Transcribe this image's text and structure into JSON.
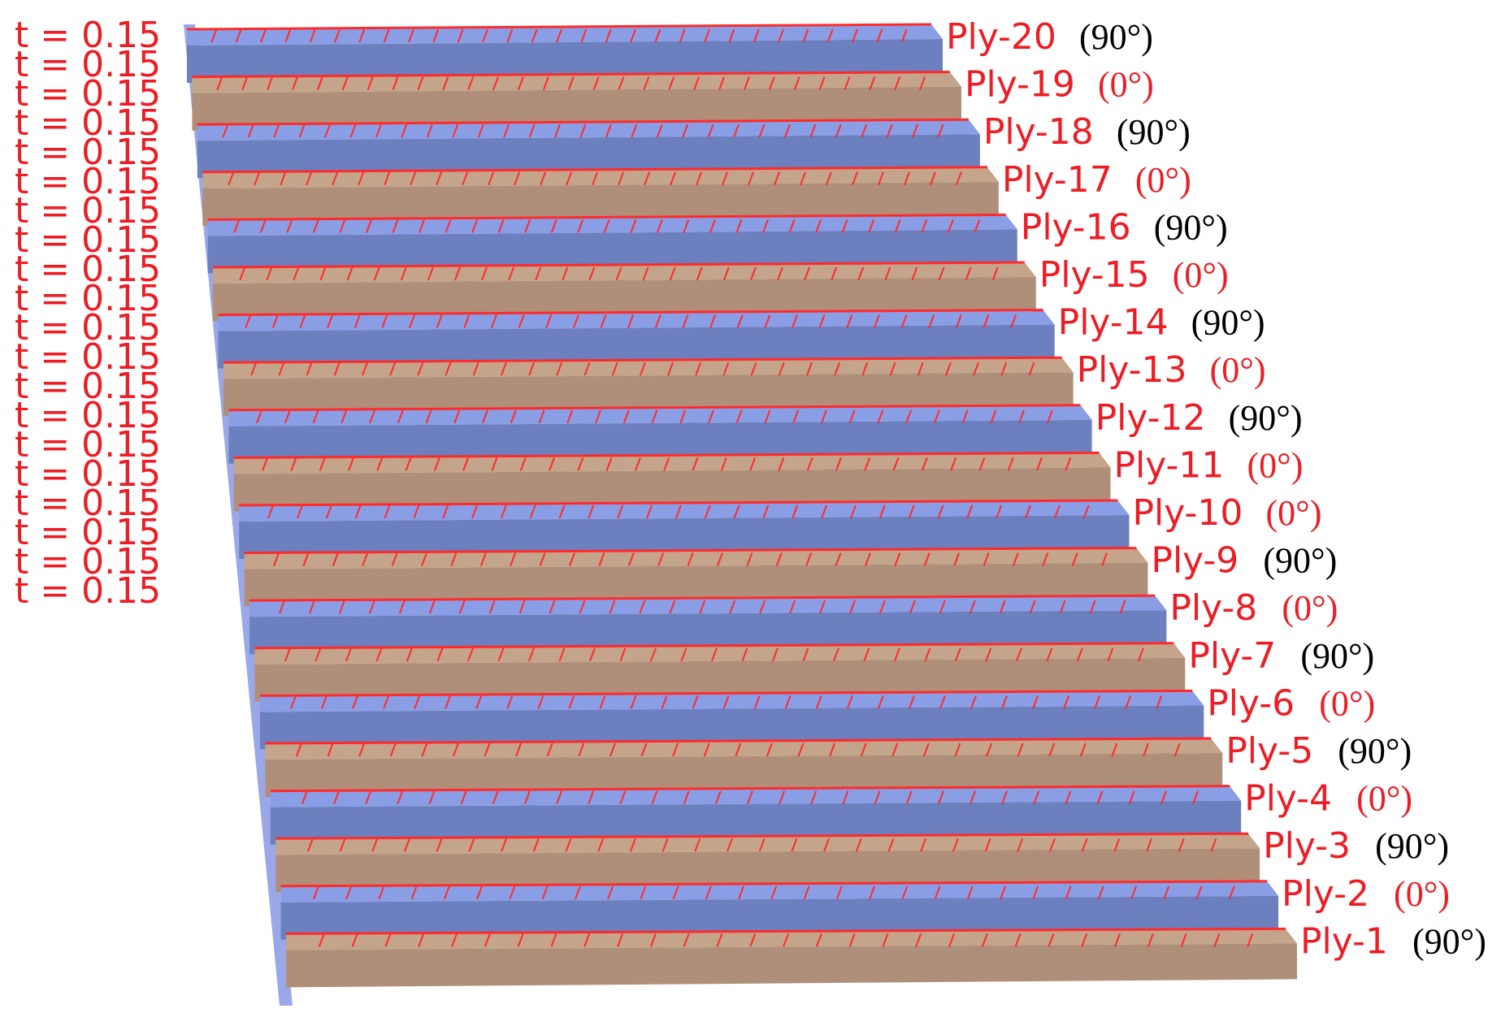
{
  "thickness_labels": [
    "t = 0.15",
    "t = 0.15",
    "t = 0.15",
    "t = 0.15",
    "t = 0.15",
    "t = 0.15",
    "t = 0.15",
    "t = 0.15",
    "t = 0.15",
    "t = 0.15",
    "t = 0.15",
    "t = 0.15",
    "t = 0.15",
    "t = 0.15",
    "t = 0.15",
    "t = 0.15",
    "t = 0.15",
    "t = 0.15",
    "t = 0.15",
    "t = 0.15"
  ],
  "plies": [
    {
      "name": "Ply-20",
      "angle": "(90°)",
      "angle_color": "black",
      "fill": "blue"
    },
    {
      "name": "Ply-19",
      "angle": "(0°)",
      "angle_color": "red",
      "fill": "tan"
    },
    {
      "name": "Ply-18",
      "angle": "(90°)",
      "angle_color": "black",
      "fill": "blue"
    },
    {
      "name": "Ply-17",
      "angle": "(0°)",
      "angle_color": "red",
      "fill": "tan"
    },
    {
      "name": "Ply-16",
      "angle": "(90°)",
      "angle_color": "black",
      "fill": "blue"
    },
    {
      "name": "Ply-15",
      "angle": "(0°)",
      "angle_color": "red",
      "fill": "tan"
    },
    {
      "name": "Ply-14",
      "angle": "(90°)",
      "angle_color": "black",
      "fill": "blue"
    },
    {
      "name": "Ply-13",
      "angle": "(0°)",
      "angle_color": "red",
      "fill": "tan"
    },
    {
      "name": "Ply-12",
      "angle": "(90°)",
      "angle_color": "black",
      "fill": "blue"
    },
    {
      "name": "Ply-11",
      "angle": "(0°)",
      "angle_color": "red",
      "fill": "tan"
    },
    {
      "name": "Ply-10",
      "angle": "(0°)",
      "angle_color": "red",
      "fill": "blue"
    },
    {
      "name": "Ply-9",
      "angle": "(90°)",
      "angle_color": "black",
      "fill": "tan"
    },
    {
      "name": "Ply-8",
      "angle": "(0°)",
      "angle_color": "red",
      "fill": "blue"
    },
    {
      "name": "Ply-7",
      "angle": "(90°)",
      "angle_color": "black",
      "fill": "tan"
    },
    {
      "name": "Ply-6",
      "angle": "(0°)",
      "angle_color": "red",
      "fill": "blue"
    },
    {
      "name": "Ply-5",
      "angle": "(90°)",
      "angle_color": "black",
      "fill": "tan"
    },
    {
      "name": "Ply-4",
      "angle": "(0°)",
      "angle_color": "red",
      "fill": "blue"
    },
    {
      "name": "Ply-3",
      "angle": "(90°)",
      "angle_color": "black",
      "fill": "tan"
    },
    {
      "name": "Ply-2",
      "angle": "(0°)",
      "angle_color": "red",
      "fill": "blue"
    },
    {
      "name": "Ply-1",
      "angle": "(90°)",
      "angle_color": "black",
      "fill": "tan"
    }
  ],
  "colors": {
    "label_red": "#ee1c24",
    "angle_red": "#ee1c24",
    "angle_black": "#000000",
    "blue_top": "#8a9ee6",
    "blue_front": "#6c7fbf",
    "tan_top": "#c4a48a",
    "tan_front": "#b08f7a",
    "edge_line": "#ff2a2a"
  }
}
